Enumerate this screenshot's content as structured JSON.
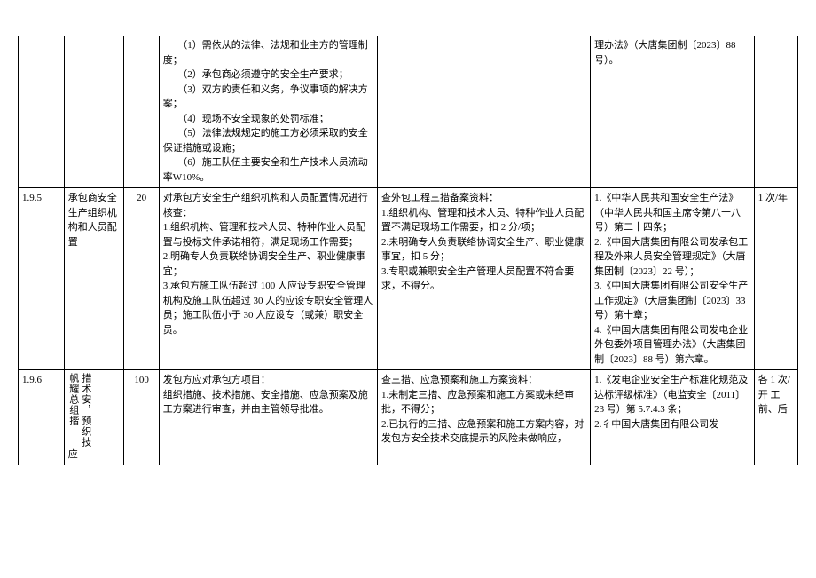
{
  "row0": {
    "method": "　　（1）需依从的法律、法规和业主方的管理制度；\n　　（2）承包商必须遵守的安全生产要求；\n　　（3）双方的责任和义务，争议事项的解决方案；\n　　（4）现场不安全现象的处罚标准；\n　　（5）法律法规规定的施工方必须采取的安全保证措施或设施；\n　　（6）施工队伍主要安全和生产技术人员流动率W10%。",
    "basis": "理办法》（大唐集团制〔2023〕88 号）。"
  },
  "row1": {
    "id": "1.9.5",
    "name": "承包商安全生产组织机构和人员配置",
    "score": "20",
    "method": "对承包方安全生产组织机构和人员配置情况进行核查：\n1.组织机构、管理和技术人员、特种作业人员配置与投标文件承诺相符，满足现场工作需要；\n2.明确专人负责联络协调安全生产、职业健康事宜；\n3.承包方施工队伍超过 100 人应设专职安全管理机构及施工队伍超过 30 人的应设专职安全管理人员；施工队伍小于 30 人应设专（或兼）职安全员。",
    "criteria": "查外包工程三措备案资料：\n1.组织机构、管理和技术人员、特种作业人员配置不满足现场工作需要，扣 2 分/项；\n2.未明确专人负责联络协调安全生产、职业健康事宜，扣 5 分；\n3.专职或兼职安全生产管理人员配置不符合要求，不得分。",
    "basis": "1.《中华人民共和国安全生产法》（中华人民共和国主席令第八十八号）第二十四条；\n2.《中国大唐集团有限公司发承包工程及外来人员安全管理规定》（大唐集团制〔2023〕22 号）；\n3.《中国大唐集团有限公司安全生产工作规定》（大唐集团制〔2023〕33 号）第十章；\n4.《中国大唐集团有限公司发电企业外包委外项目管理办法》（大唐集团制〔2023〕88 号）第六章。",
    "freq": "1 次/年"
  },
  "row2": {
    "id": "1.9.6",
    "name_col1": "帆耀总组揩",
    "name_col2": "措术安，预织技",
    "name_extra": "应",
    "score": "100",
    "method": "发包方应对承包方项目：\n组织措施、技术措施、安全措施、应急预案及施工方案进行审查，并由主管领导批准。",
    "criteria": "查三措、应急预案和施工方案资料：\n1.未制定三措、应急预案和施工方案或未经审批，不得分；\n2.已执行的三措、应急预案和施工方案内容，对发包方安全技术交底提示的风险未做响应，",
    "basis": "1.《发电企业安全生产标准化规范及达标评级标准》（电监安全〔2011〕23 号）第 5.7.4.3 条；\n2.彳中国大唐集团有限公司发",
    "freq": "各 1 次/开 工前、后"
  }
}
